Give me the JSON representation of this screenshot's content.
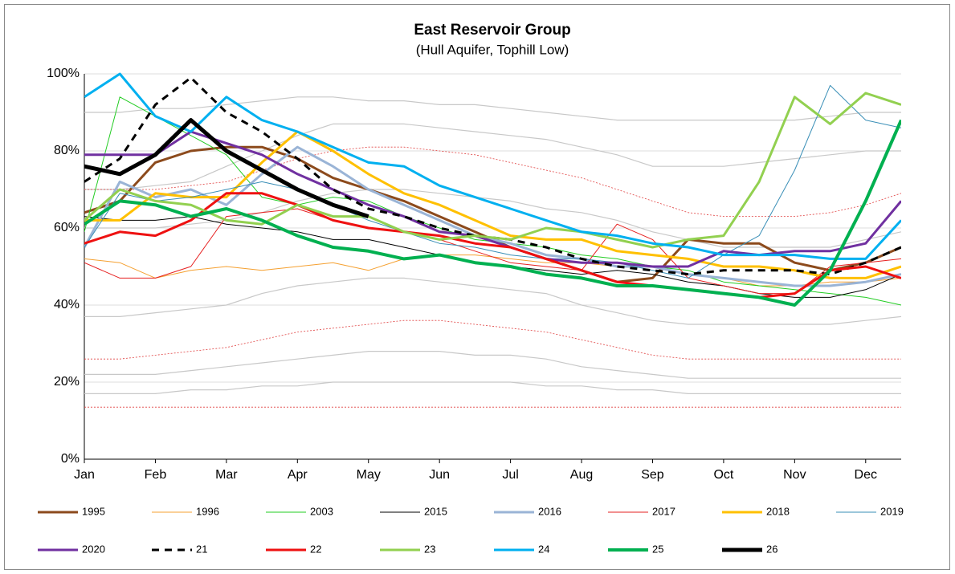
{
  "chart_data": {
    "type": "line",
    "title": "East Reservoir Group",
    "subtitle": "(Hull Aquifer, Tophill Low)",
    "x": [
      0,
      0.5,
      1,
      1.5,
      2,
      2.5,
      3,
      3.5,
      4,
      4.5,
      5,
      5.5,
      6,
      6.5,
      7,
      7.5,
      8,
      8.5,
      9,
      9.5,
      10,
      10.5,
      11,
      11.5
    ],
    "xlim": [
      0,
      11.5
    ],
    "xticks": [
      {
        "value": 0,
        "label": "Jan"
      },
      {
        "value": 1,
        "label": "Feb"
      },
      {
        "value": 2,
        "label": "Mar"
      },
      {
        "value": 3,
        "label": "Apr"
      },
      {
        "value": 4,
        "label": "May"
      },
      {
        "value": 5,
        "label": "Jun"
      },
      {
        "value": 6,
        "label": "Jul"
      },
      {
        "value": 7,
        "label": "Aug"
      },
      {
        "value": 8,
        "label": "Sep"
      },
      {
        "value": 9,
        "label": "Oct"
      },
      {
        "value": 10,
        "label": "Nov"
      },
      {
        "value": 11,
        "label": "Dec"
      }
    ],
    "ylim": [
      0,
      100
    ],
    "yticks": [
      {
        "value": 0,
        "label": "0%"
      },
      {
        "value": 20,
        "label": "20%"
      },
      {
        "value": 40,
        "label": "40%"
      },
      {
        "value": 60,
        "label": "60%"
      },
      {
        "value": 80,
        "label": "80%"
      },
      {
        "value": 100,
        "label": "100%"
      }
    ],
    "grid": true,
    "legend": "bottom",
    "reference_lines": [
      {
        "color": "#c8c8c8",
        "dash": false,
        "values": [
          90,
          90,
          91,
          91,
          92,
          93,
          94,
          94,
          93,
          93,
          92,
          92,
          91,
          90,
          89,
          88,
          88,
          88,
          88,
          88,
          88,
          89,
          90,
          90
        ]
      },
      {
        "color": "#c8c8c8",
        "dash": false,
        "values": [
          70,
          70,
          71,
          72,
          76,
          80,
          84,
          87,
          87,
          87,
          86,
          85,
          84,
          83,
          81,
          79,
          76,
          76,
          76,
          77,
          78,
          79,
          80,
          80
        ]
      },
      {
        "color": "#c8c8c8",
        "dash": false,
        "values": [
          60,
          60,
          60,
          61,
          62,
          64,
          67,
          69,
          70,
          70,
          69,
          68,
          67,
          65,
          64,
          62,
          59,
          57,
          55,
          55,
          55,
          55,
          57,
          59
        ]
      },
      {
        "color": "#c8c8c8",
        "dash": false,
        "values": [
          37,
          37,
          38,
          39,
          40,
          43,
          45,
          46,
          47,
          47,
          46,
          45,
          44,
          43,
          40,
          38,
          36,
          35,
          35,
          35,
          35,
          35,
          36,
          37
        ]
      },
      {
        "color": "#c8c8c8",
        "dash": false,
        "values": [
          22,
          22,
          22,
          23,
          24,
          25,
          26,
          27,
          28,
          28,
          28,
          27,
          27,
          26,
          24,
          23,
          22,
          21,
          21,
          21,
          21,
          21,
          21,
          21
        ]
      },
      {
        "color": "#c8c8c8",
        "dash": false,
        "values": [
          17,
          17,
          17,
          18,
          18,
          19,
          19,
          20,
          20,
          20,
          20,
          20,
          20,
          19,
          19,
          18,
          18,
          17,
          17,
          17,
          17,
          17,
          17,
          17
        ]
      },
      {
        "color": "#e04040",
        "dash": true,
        "values": [
          70,
          70,
          70,
          71,
          72,
          75,
          78,
          80,
          81,
          81,
          80,
          79,
          77,
          75,
          73,
          70,
          67,
          64,
          63,
          63,
          63,
          64,
          66,
          69
        ]
      },
      {
        "color": "#e04040",
        "dash": true,
        "values": [
          26,
          26,
          27,
          28,
          29,
          31,
          33,
          34,
          35,
          36,
          36,
          35,
          34,
          33,
          31,
          29,
          27,
          26,
          26,
          26,
          26,
          26,
          26,
          26
        ]
      },
      {
        "color": "#e04040",
        "dash": true,
        "values": [
          13.5,
          13.5,
          13.5,
          13.5,
          13.5,
          13.5,
          13.5,
          13.5,
          13.5,
          13.5,
          13.5,
          13.5,
          13.5,
          13.5,
          13.5,
          13.5,
          13.5,
          13.5,
          13.5,
          13.5,
          13.5,
          13.5,
          13.5,
          13.5
        ]
      }
    ],
    "series": [
      {
        "name": "1995",
        "color": "#8c4a1c",
        "width": 3,
        "dash": false,
        "values": [
          64,
          67,
          77,
          80,
          81,
          81,
          78,
          73,
          70,
          67,
          63,
          59,
          55,
          52,
          49,
          46,
          47,
          57,
          56,
          56,
          51,
          49,
          51,
          55
        ]
      },
      {
        "name": "1996",
        "color": "#f5a030",
        "width": 1,
        "dash": false,
        "values": [
          52,
          51,
          47,
          49,
          50,
          49,
          50,
          51,
          49,
          52,
          53,
          53,
          52,
          51,
          51,
          50,
          50,
          48,
          47,
          45,
          45,
          46,
          46,
          47
        ]
      },
      {
        "name": "2003",
        "color": "#22cc22",
        "width": 1,
        "dash": false,
        "values": [
          59,
          94,
          89,
          84,
          79,
          68,
          66,
          68,
          67,
          63,
          60,
          57,
          56,
          55,
          53,
          52,
          50,
          49,
          46,
          45,
          44,
          43,
          42,
          40
        ]
      },
      {
        "name": "2015",
        "color": "#000000",
        "width": 1,
        "dash": false,
        "values": [
          63,
          62,
          62,
          63,
          61,
          60,
          59,
          57,
          57,
          55,
          53,
          51,
          50,
          49,
          48,
          49,
          48,
          46,
          45,
          43,
          42,
          42,
          44,
          48
        ]
      },
      {
        "name": "2016",
        "color": "#9ab4d6",
        "width": 3,
        "dash": false,
        "values": [
          55,
          72,
          68,
          70,
          66,
          74,
          81,
          76,
          70,
          66,
          62,
          58,
          56,
          53,
          52,
          50,
          50,
          48,
          47,
          46,
          45,
          45,
          46,
          48
        ]
      },
      {
        "name": "2017",
        "color": "#e62020",
        "width": 1,
        "dash": false,
        "values": [
          51,
          47,
          47,
          50,
          63,
          64,
          65,
          62,
          60,
          59,
          57,
          54,
          51,
          50,
          49,
          61,
          57,
          47,
          45,
          43,
          43,
          50,
          51,
          52
        ]
      },
      {
        "name": "2018",
        "color": "#ffc000",
        "width": 3,
        "dash": false,
        "values": [
          62,
          62,
          69,
          68,
          68,
          77,
          85,
          80,
          74,
          69,
          66,
          62,
          58,
          57,
          57,
          54,
          53,
          52,
          50,
          50,
          49,
          47,
          47,
          50
        ]
      },
      {
        "name": "2019",
        "color": "#3a8fb7",
        "width": 1,
        "dash": false,
        "values": [
          55,
          69,
          67,
          68,
          70,
          72,
          70,
          66,
          62,
          59,
          56,
          55,
          53,
          52,
          52,
          51,
          49,
          47,
          53,
          58,
          75,
          97,
          88,
          86
        ]
      },
      {
        "name": "2020",
        "color": "#7030a0",
        "width": 3,
        "dash": false,
        "values": [
          79,
          79,
          79,
          85,
          82,
          79,
          74,
          70,
          66,
          63,
          59,
          58,
          55,
          52,
          51,
          51,
          50,
          50,
          54,
          53,
          54,
          54,
          56,
          67
        ]
      },
      {
        "name": "21",
        "color": "#000000",
        "width": 3,
        "dash": true,
        "values": [
          72,
          78,
          92,
          99,
          90,
          85,
          78,
          70,
          65,
          63,
          60,
          58,
          57,
          55,
          52,
          50,
          49,
          48,
          49,
          49,
          49,
          48,
          51,
          55
        ]
      },
      {
        "name": "22",
        "color": "#ee1111",
        "width": 3,
        "dash": false,
        "values": [
          56,
          59,
          58,
          62,
          69,
          69,
          66,
          62,
          60,
          59,
          58,
          56,
          55,
          52,
          49,
          46,
          45,
          44,
          43,
          42,
          43,
          49,
          50,
          47
        ]
      },
      {
        "name": "23",
        "color": "#92d050",
        "width": 3,
        "dash": false,
        "values": [
          62,
          70,
          67,
          66,
          62,
          61,
          66,
          63,
          63,
          59,
          57,
          58,
          57,
          60,
          59,
          57,
          55,
          57,
          58,
          72,
          94,
          87,
          95,
          92
        ]
      },
      {
        "name": "24",
        "color": "#00b0f0",
        "width": 3,
        "dash": false,
        "values": [
          94,
          100,
          89,
          85,
          94,
          88,
          85,
          81,
          77,
          76,
          71,
          68,
          65,
          62,
          59,
          58,
          56,
          55,
          53,
          53,
          53,
          52,
          52,
          62
        ]
      },
      {
        "name": "25",
        "color": "#00b050",
        "width": 4,
        "dash": false,
        "values": [
          61,
          67,
          66,
          63,
          65,
          62,
          58,
          55,
          54,
          52,
          53,
          51,
          50,
          48,
          47,
          45,
          45,
          44,
          43,
          42,
          40,
          49,
          67,
          88
        ]
      },
      {
        "name": "26",
        "color": "#000000",
        "width": 5,
        "dash": false,
        "values": [
          76,
          74,
          79,
          88,
          80,
          75,
          70,
          66,
          63,
          null,
          null,
          null,
          null,
          null,
          null,
          null,
          null,
          null,
          null,
          null,
          null,
          null,
          null,
          null
        ]
      }
    ]
  }
}
